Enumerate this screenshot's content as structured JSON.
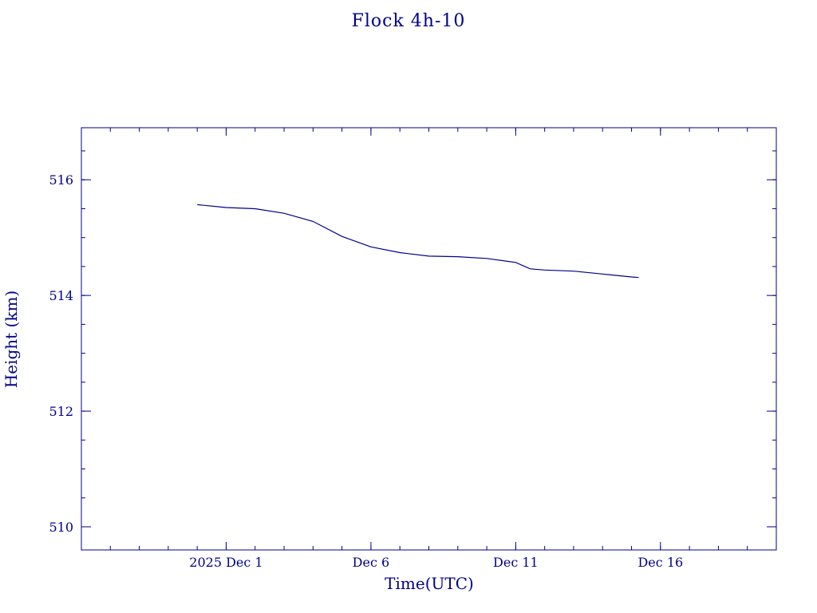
{
  "chart_data": {
    "type": "line",
    "title": "Flock 4h-10",
    "xlabel": "Time(UTC)",
    "ylabel": "Height (km)",
    "xlim": [
      "2025-11-26",
      "2025-12-20"
    ],
    "ylim": [
      509.6,
      516.9
    ],
    "xticks": [
      {
        "date": "2025-12-01",
        "label": "2025 Dec  1"
      },
      {
        "date": "2025-12-06",
        "label": "Dec  6"
      },
      {
        "date": "2025-12-11",
        "label": "Dec 11"
      },
      {
        "date": "2025-12-16",
        "label": "Dec 16"
      }
    ],
    "yticks": [
      510,
      512,
      514,
      516
    ],
    "grid": false,
    "series": [
      {
        "color": "#00008b",
        "x": [
          "2025-11-30",
          "2025-12-01",
          "2025-12-02",
          "2025-12-03",
          "2025-12-04",
          "2025-12-05",
          "2025-12-06",
          "2025-12-07",
          "2025-12-08",
          "2025-12-09",
          "2025-12-10",
          "2025-12-11",
          "2025-12-11 12:00",
          "2025-12-12",
          "2025-12-13",
          "2025-12-14",
          "2025-12-15",
          "2025-12-15 06:00"
        ],
        "y": [
          515.57,
          515.52,
          515.5,
          515.42,
          515.28,
          515.02,
          514.84,
          514.74,
          514.68,
          514.67,
          514.64,
          514.57,
          514.46,
          514.44,
          514.42,
          514.37,
          514.32,
          514.31
        ]
      }
    ]
  }
}
